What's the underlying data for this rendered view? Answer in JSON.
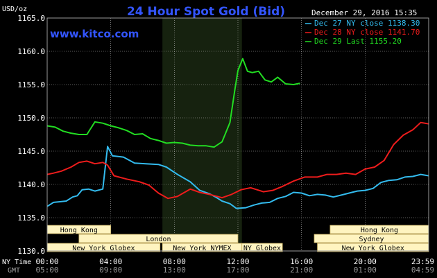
{
  "chart_data": {
    "type": "line",
    "title": "24 Hour Spot Gold (Bid)",
    "timestamp": "December 29, 2016 15:35",
    "watermark": "www.kitco.com",
    "yunit": "USD/oz",
    "ylim": [
      1130.0,
      1165.0
    ],
    "yticks": [
      "1165.0",
      "1160.0",
      "1155.0",
      "1150.0",
      "1145.0",
      "1140.0",
      "1135.0",
      "1130.0"
    ],
    "x_hours": [
      0,
      24
    ],
    "xticks_ny": [
      "00:00",
      "04:00",
      "08:00",
      "12:00",
      "16:00",
      "20:00",
      "23:59"
    ],
    "xticks_gmt": [
      "05:00",
      "09:00",
      "13:00",
      "17:00",
      "21:00",
      "01:00",
      "04:59"
    ],
    "xaxis_labels": {
      "ny": "NY Time",
      "gmt": "GMT"
    },
    "shaded_session": [
      7.25,
      12.25
    ],
    "grid": true,
    "legend_position": "top-right",
    "colors": {
      "dec27": "#33bbee",
      "dec28": "#ee1c1c",
      "dec29": "#22dd22",
      "plot_bg": "#000000",
      "grid": "#bbbbbb",
      "title": "#3355ff",
      "shade": "#16220f",
      "session_bg": "#fff4c0"
    },
    "series": [
      {
        "name": "Dec 27 NY close 1138.30",
        "color": "#33bbee",
        "x": [
          0,
          0.4,
          0.8,
          1.2,
          1.6,
          1.9,
          2.2,
          2.6,
          3.0,
          3.5,
          3.8,
          4.1,
          4.8,
          5.5,
          6.2,
          7.0,
          7.5,
          8.2,
          9.0,
          9.6,
          10.2,
          10.6,
          11.0,
          11.5,
          11.9,
          12.5,
          13.0,
          13.5,
          14.0,
          14.5,
          15.0,
          15.5,
          16.0,
          16.5,
          17.0,
          17.5,
          18.0,
          18.5,
          19.0,
          19.5,
          20.0,
          20.5,
          21.0,
          21.5,
          22.0,
          22.5,
          23.0,
          23.5,
          23.99
        ],
        "y": [
          1136.7,
          1137.3,
          1137.4,
          1137.5,
          1138.1,
          1138.3,
          1139.2,
          1139.3,
          1139.0,
          1139.3,
          1145.7,
          1144.3,
          1144.1,
          1143.2,
          1143.1,
          1143.0,
          1142.6,
          1141.5,
          1140.4,
          1139.1,
          1138.6,
          1138.1,
          1137.5,
          1137.1,
          1136.4,
          1136.5,
          1136.9,
          1137.2,
          1137.3,
          1137.9,
          1138.2,
          1138.8,
          1138.7,
          1138.3,
          1138.5,
          1138.4,
          1138.1,
          1138.4,
          1138.7,
          1139.0,
          1139.1,
          1139.4,
          1140.3,
          1140.6,
          1140.7,
          1141.1,
          1141.2,
          1141.5,
          1141.3
        ]
      },
      {
        "name": "Dec 28 NY close 1141.70",
        "color": "#ee1c1c",
        "x": [
          0,
          0.4,
          0.9,
          1.5,
          2.0,
          2.5,
          3.0,
          3.5,
          3.8,
          4.2,
          5.0,
          5.8,
          6.4,
          7.0,
          7.6,
          8.2,
          9.0,
          9.6,
          10.2,
          11.0,
          11.6,
          12.2,
          12.8,
          13.6,
          14.2,
          14.8,
          15.5,
          16.2,
          17.0,
          17.6,
          18.2,
          18.8,
          19.4,
          20.0,
          20.6,
          21.2,
          21.8,
          22.4,
          23.0,
          23.5,
          23.99
        ],
        "y": [
          1141.5,
          1141.7,
          1142.0,
          1142.6,
          1143.3,
          1143.5,
          1143.1,
          1143.3,
          1142.9,
          1141.3,
          1140.8,
          1140.4,
          1139.9,
          1138.7,
          1137.9,
          1138.2,
          1139.3,
          1138.8,
          1138.5,
          1138.0,
          1138.5,
          1139.2,
          1139.5,
          1138.9,
          1139.1,
          1139.7,
          1140.5,
          1141.1,
          1141.1,
          1141.5,
          1141.5,
          1141.7,
          1141.5,
          1142.3,
          1142.6,
          1143.6,
          1146.0,
          1147.4,
          1148.2,
          1149.3,
          1149.1
        ]
      },
      {
        "name": "Dec 29 Last 1155.20",
        "color": "#22dd22",
        "x": [
          0,
          0.5,
          1.0,
          1.5,
          2.0,
          2.5,
          3.0,
          3.5,
          4.0,
          4.5,
          5.0,
          5.5,
          6.0,
          6.5,
          7.0,
          7.5,
          8.0,
          8.5,
          9.0,
          9.5,
          10.0,
          10.5,
          11.0,
          11.5,
          11.8,
          12.0,
          12.3,
          12.6,
          12.9,
          13.3,
          13.7,
          14.1,
          14.5,
          15.0,
          15.5,
          15.9
        ],
        "y": [
          1148.8,
          1148.6,
          1148.0,
          1147.7,
          1147.5,
          1147.5,
          1149.4,
          1149.2,
          1148.8,
          1148.5,
          1148.1,
          1147.5,
          1147.6,
          1146.9,
          1146.6,
          1146.2,
          1146.3,
          1146.2,
          1145.9,
          1145.8,
          1145.8,
          1145.6,
          1146.4,
          1149.3,
          1154.1,
          1157.1,
          1158.9,
          1157.0,
          1156.8,
          1157.0,
          1155.7,
          1155.4,
          1156.1,
          1155.1,
          1155.0,
          1155.2
        ]
      }
    ],
    "sessions": [
      {
        "name": "Hong Kong",
        "start": 0,
        "end": 4.0,
        "row": 0
      },
      {
        "name": "London",
        "start": 2.0,
        "end": 12.0,
        "row": 1
      },
      {
        "name": "New York Globex",
        "start": 0,
        "end": 7.1,
        "row": 2
      },
      {
        "name": "New York NYMEX",
        "start": 7.25,
        "end": 12.25,
        "row": 2
      },
      {
        "name": "NY Globex",
        "start": 12.25,
        "end": 14.8,
        "row": 2
      },
      {
        "name": "Sydney",
        "start": 16.8,
        "end": 24.0,
        "row": 1
      },
      {
        "name": "Hong Kong",
        "start": 17.8,
        "end": 24.0,
        "row": 0
      },
      {
        "name": "New York Globex",
        "start": 17.0,
        "end": 24.0,
        "row": 2
      }
    ]
  }
}
